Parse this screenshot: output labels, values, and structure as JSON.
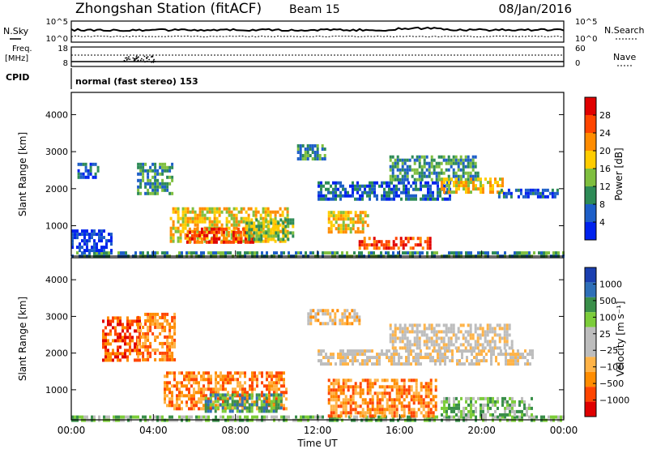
{
  "header": {
    "station": "Zhongshan Station (fitACF)",
    "beam": "Beam 15",
    "date": "08/Jan/2016"
  },
  "top_panels": {
    "nsky_label": "N.Sky",
    "nsky_ticks": [
      "10^5",
      "10^0"
    ],
    "nsearch_label": "N.Search",
    "nsearch_ticks": [
      "10^5",
      "10^0"
    ],
    "freq_label_1": "Freq.",
    "freq_label_2": "[MHz]",
    "freq_ticks": [
      "18",
      "8"
    ],
    "nave_label": "Nave",
    "nave_ticks": [
      "60",
      "0"
    ],
    "cpid_label": "CPID",
    "cpid_text": "normal (fast stereo) 153"
  },
  "colors": {
    "power_scale": [
      "#0022ee",
      "#1e5fc8",
      "#2e8b57",
      "#7fbf3f",
      "#ffcc00",
      "#ff8c00",
      "#ff4500",
      "#e00000"
    ],
    "velocity_scale": [
      "#e00000",
      "#ff4500",
      "#ff8c00",
      "#ffb347",
      "#bdbdbd",
      "#bdbdbd",
      "#7ccd3a",
      "#3a8f4a",
      "#2e6fb8",
      "#1a3fb0"
    ]
  },
  "chart_data": [
    {
      "type": "heatmap",
      "name": "power",
      "xlabel": "",
      "ylabel": "Slant Range [km]",
      "xlim": [
        0,
        24
      ],
      "ylim": [
        180,
        4600
      ],
      "y_ticks": [
        "1000",
        "2000",
        "3000",
        "4000"
      ],
      "y_tick_values": [
        1000,
        2000,
        3000,
        4000
      ],
      "colorbar_label": "Power [dB]",
      "colorbar_ticks": [
        "4",
        "8",
        "12",
        "16",
        "20",
        "24",
        "28"
      ],
      "colorbar_range": [
        0,
        32
      ],
      "regions": [
        {
          "t0": 0.0,
          "t1": 24.0,
          "r0": 200,
          "r1": 310,
          "level": 2
        },
        {
          "t0": 0.0,
          "t1": 2.0,
          "r0": 320,
          "r1": 900,
          "level": 0
        },
        {
          "t0": 0.3,
          "t1": 1.3,
          "r0": 2300,
          "r1": 2700,
          "level": 1
        },
        {
          "t0": 3.2,
          "t1": 4.9,
          "r0": 1900,
          "r1": 2700,
          "level": 2
        },
        {
          "t0": 4.8,
          "t1": 10.5,
          "r0": 550,
          "r1": 1500,
          "level": 4
        },
        {
          "t0": 5.6,
          "t1": 8.8,
          "r0": 550,
          "r1": 950,
          "level": 6
        },
        {
          "t0": 8.5,
          "t1": 10.8,
          "r0": 600,
          "r1": 1200,
          "level": 3
        },
        {
          "t0": 11.0,
          "t1": 12.4,
          "r0": 2800,
          "r1": 3200,
          "level": 2
        },
        {
          "t0": 12.0,
          "t1": 18.5,
          "r0": 1750,
          "r1": 2200,
          "level": 1
        },
        {
          "t0": 12.5,
          "t1": 14.5,
          "r0": 800,
          "r1": 1400,
          "level": 4
        },
        {
          "t0": 14.0,
          "t1": 17.5,
          "r0": 350,
          "r1": 700,
          "level": 6
        },
        {
          "t0": 15.5,
          "t1": 19.8,
          "r0": 2200,
          "r1": 2900,
          "level": 2
        },
        {
          "t0": 18.0,
          "t1": 21.0,
          "r0": 1900,
          "r1": 2300,
          "level": 4
        },
        {
          "t0": 20.8,
          "t1": 23.7,
          "r0": 1750,
          "r1": 2000,
          "level": 1
        }
      ]
    },
    {
      "type": "heatmap",
      "name": "velocity",
      "xlabel": "Time UT",
      "ylabel": "Slant Range [km]",
      "xlim": [
        0,
        24
      ],
      "ylim": [
        180,
        4600
      ],
      "x_ticks": [
        "00:00",
        "04:00",
        "08:00",
        "12:00",
        "16:00",
        "20:00",
        "00:00"
      ],
      "x_tick_values": [
        0,
        4,
        8,
        12,
        16,
        20,
        24
      ],
      "y_ticks": [
        "1000",
        "2000",
        "3000",
        "4000"
      ],
      "y_tick_values": [
        1000,
        2000,
        3000,
        4000
      ],
      "colorbar_label": "Velocity [m s⁻¹]",
      "colorbar_ticks": [
        "1000",
        "500",
        "100",
        "25",
        "−25",
        "−100",
        "−500",
        "−1000"
      ],
      "regions": [
        {
          "t0": 0.0,
          "t1": 24.0,
          "r0": 200,
          "r1": 300,
          "level": 6
        },
        {
          "t0": 1.5,
          "t1": 3.3,
          "r0": 1800,
          "r1": 3000,
          "level": 1
        },
        {
          "t0": 3.2,
          "t1": 5.0,
          "r0": 1800,
          "r1": 3100,
          "level": 2
        },
        {
          "t0": 4.5,
          "t1": 10.5,
          "r0": 450,
          "r1": 1500,
          "level": 2
        },
        {
          "t0": 6.5,
          "t1": 10.2,
          "r0": 400,
          "r1": 900,
          "level": 7
        },
        {
          "t0": 11.5,
          "t1": 14.0,
          "r0": 2800,
          "r1": 3200,
          "level": 3
        },
        {
          "t0": 12.0,
          "t1": 22.5,
          "r0": 1700,
          "r1": 2100,
          "level": 4
        },
        {
          "t0": 15.5,
          "t1": 21.5,
          "r0": 2100,
          "r1": 2800,
          "level": 4
        },
        {
          "t0": 12.5,
          "t1": 17.8,
          "r0": 300,
          "r1": 1300,
          "level": 2
        },
        {
          "t0": 18.0,
          "t1": 22.5,
          "r0": 300,
          "r1": 800,
          "level": 6
        }
      ]
    }
  ]
}
